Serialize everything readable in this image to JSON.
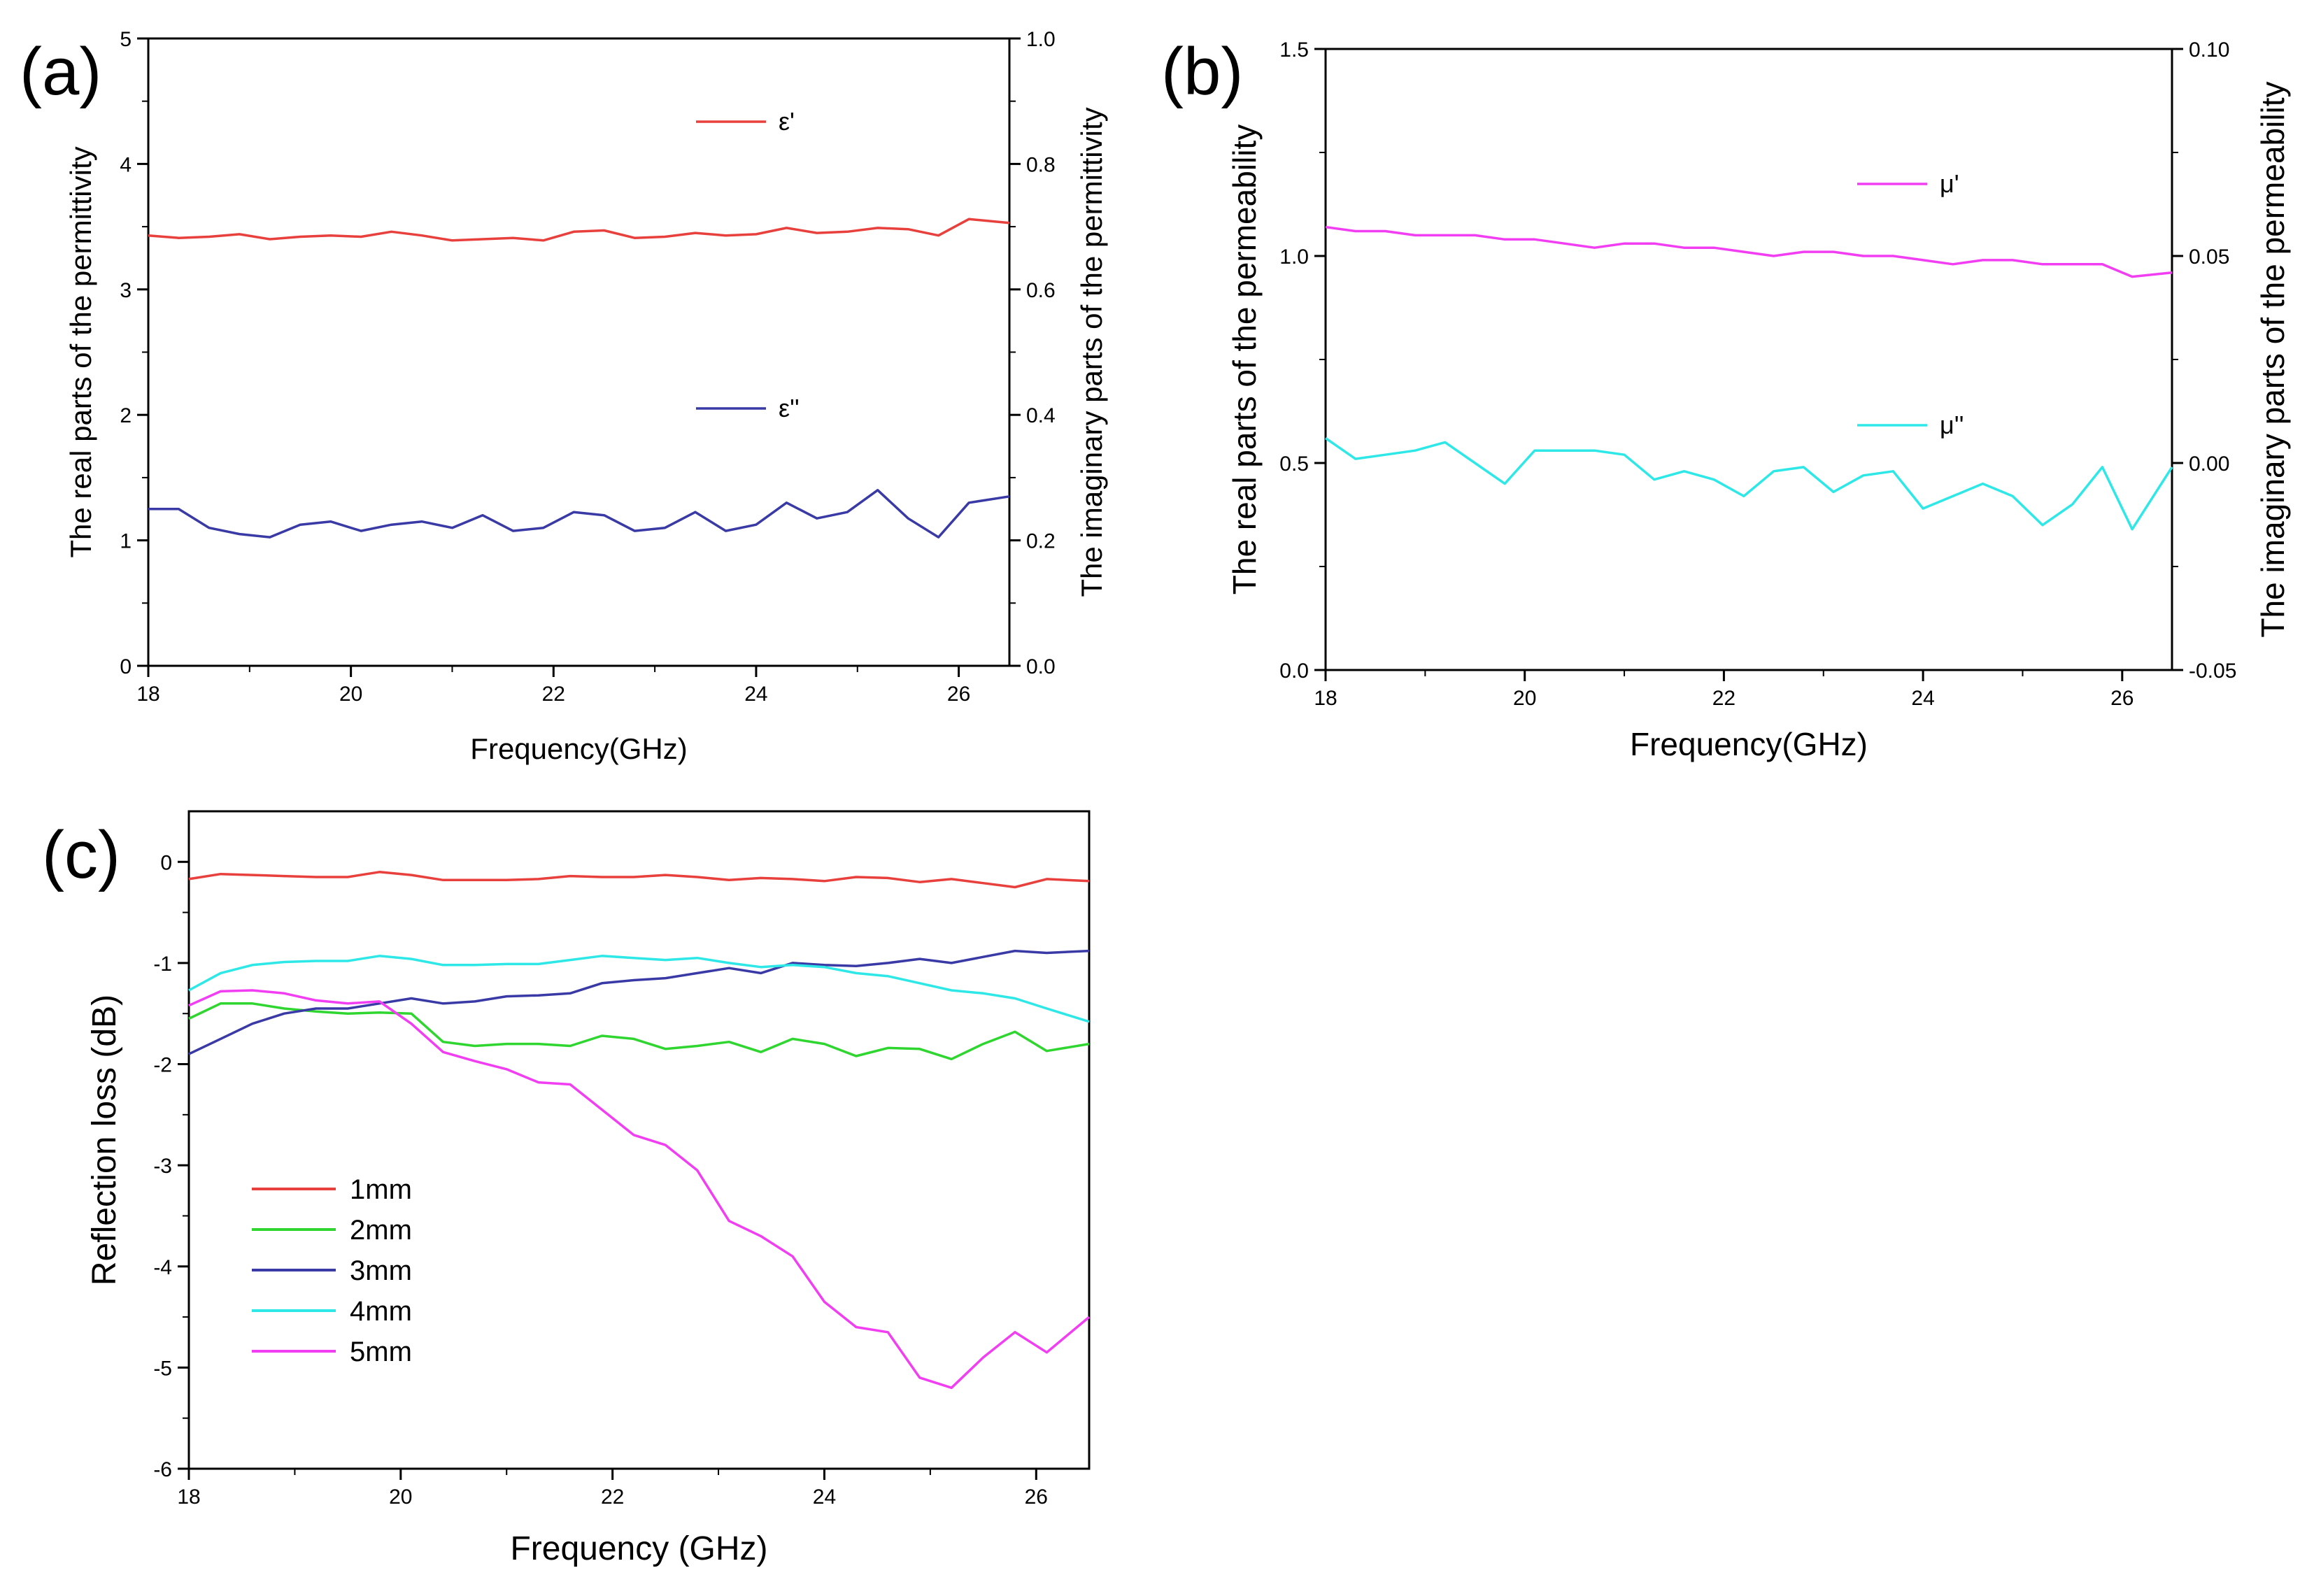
{
  "colors": {
    "red": "#e8403c",
    "green": "#2fd62f",
    "blue": "#3a3aa6",
    "cyan": "#2ee8e8",
    "magenta": "#f23ef2"
  },
  "chart_data": [
    {
      "panel": "(a)",
      "type": "line",
      "title": "",
      "xlabel": "Frequency(GHz)",
      "ylabel": "The real  parts of the permittivity",
      "y2label": "The imaginary parts of the permittivity",
      "xlim": [
        18,
        26.5
      ],
      "ylim": [
        0,
        5
      ],
      "y2lim": [
        0,
        1.0
      ],
      "xticks": [
        "18",
        "20",
        "22",
        "24",
        "26"
      ],
      "xtick_values": [
        18,
        20,
        22,
        24,
        26
      ],
      "yticks": [
        "0",
        "1",
        "2",
        "3",
        "4",
        "5"
      ],
      "ytick_values": [
        0,
        1,
        2,
        3,
        4,
        5
      ],
      "y2ticks": [
        "0.0",
        "0.2",
        "0.4",
        "0.6",
        "0.8",
        "1.0"
      ],
      "y2tick_values": [
        0,
        0.2,
        0.4,
        0.6,
        0.8,
        1.0
      ],
      "legend_position": "inside-right",
      "series": [
        {
          "name": "ε'",
          "axis": "left",
          "color": "#e8403c",
          "x": [
            18,
            18.3,
            18.6,
            18.9,
            19.2,
            19.5,
            19.8,
            20.1,
            20.4,
            20.7,
            21.0,
            21.3,
            21.6,
            21.9,
            22.2,
            22.5,
            22.8,
            23.1,
            23.4,
            23.7,
            24.0,
            24.3,
            24.6,
            24.9,
            25.2,
            25.5,
            25.8,
            26.1,
            26.5
          ],
          "y": [
            3.43,
            3.41,
            3.42,
            3.44,
            3.4,
            3.42,
            3.43,
            3.42,
            3.46,
            3.43,
            3.39,
            3.4,
            3.41,
            3.39,
            3.46,
            3.47,
            3.41,
            3.42,
            3.45,
            3.43,
            3.44,
            3.49,
            3.45,
            3.46,
            3.49,
            3.48,
            3.43,
            3.56,
            3.53
          ]
        },
        {
          "name": "ε''",
          "axis": "right",
          "color": "#3a3aa6",
          "x": [
            18,
            18.3,
            18.6,
            18.9,
            19.2,
            19.5,
            19.8,
            20.1,
            20.4,
            20.7,
            21.0,
            21.3,
            21.6,
            21.9,
            22.2,
            22.5,
            22.8,
            23.1,
            23.4,
            23.7,
            24.0,
            24.3,
            24.6,
            24.9,
            25.2,
            25.5,
            25.8,
            26.1,
            26.5
          ],
          "y": [
            0.25,
            0.25,
            0.22,
            0.21,
            0.205,
            0.225,
            0.23,
            0.215,
            0.225,
            0.23,
            0.22,
            0.24,
            0.215,
            0.22,
            0.245,
            0.24,
            0.215,
            0.22,
            0.245,
            0.215,
            0.225,
            0.26,
            0.235,
            0.245,
            0.28,
            0.235,
            0.205,
            0.26,
            0.27
          ]
        }
      ]
    },
    {
      "panel": "(b)",
      "type": "line",
      "title": "",
      "xlabel": "Frequency(GHz)",
      "ylabel": "The real parts of the permeability",
      "y2label": "The imaginary parts of the permeability",
      "xlim": [
        18,
        26.5
      ],
      "ylim": [
        0,
        1.5
      ],
      "y2lim": [
        -0.05,
        0.1
      ],
      "xticks": [
        "18",
        "20",
        "22",
        "24",
        "26"
      ],
      "xtick_values": [
        18,
        20,
        22,
        24,
        26
      ],
      "yticks": [
        "0.0",
        "0.5",
        "1.0",
        "1.5"
      ],
      "ytick_values": [
        0,
        0.5,
        1.0,
        1.5
      ],
      "y2ticks": [
        "-0.05",
        "0.00",
        "0.05",
        "0.10"
      ],
      "y2tick_values": [
        -0.05,
        0,
        0.05,
        0.1
      ],
      "legend_position": "inside-right",
      "series": [
        {
          "name": "μ'",
          "axis": "left",
          "color": "#f23ef2",
          "x": [
            18,
            18.3,
            18.6,
            18.9,
            19.2,
            19.5,
            19.8,
            20.1,
            20.4,
            20.7,
            21.0,
            21.3,
            21.6,
            21.9,
            22.2,
            22.5,
            22.8,
            23.1,
            23.4,
            23.7,
            24.0,
            24.3,
            24.6,
            24.9,
            25.2,
            25.5,
            25.8,
            26.1,
            26.5
          ],
          "y": [
            1.07,
            1.06,
            1.06,
            1.05,
            1.05,
            1.05,
            1.04,
            1.04,
            1.03,
            1.02,
            1.03,
            1.03,
            1.02,
            1.02,
            1.01,
            1.0,
            1.01,
            1.01,
            1.0,
            1.0,
            0.99,
            0.98,
            0.99,
            0.99,
            0.98,
            0.98,
            0.98,
            0.95,
            0.96
          ]
        },
        {
          "name": "μ''",
          "axis": "right",
          "color": "#2ee8e8",
          "x": [
            18,
            18.3,
            18.6,
            18.9,
            19.2,
            19.5,
            19.8,
            20.1,
            20.4,
            20.7,
            21.0,
            21.3,
            21.6,
            21.9,
            22.2,
            22.5,
            22.8,
            23.1,
            23.4,
            23.7,
            24.0,
            24.3,
            24.6,
            24.9,
            25.2,
            25.5,
            25.8,
            26.1,
            26.5
          ],
          "y": [
            0.006,
            0.001,
            0.002,
            0.003,
            0.005,
            0.0,
            -0.005,
            0.003,
            0.003,
            0.003,
            0.002,
            -0.004,
            -0.002,
            -0.004,
            -0.008,
            -0.002,
            -0.001,
            -0.007,
            -0.003,
            -0.002,
            -0.011,
            -0.008,
            -0.005,
            -0.008,
            -0.015,
            -0.01,
            -0.001,
            -0.016,
            -0.001
          ]
        }
      ]
    },
    {
      "panel": "(c)",
      "type": "line",
      "title": "",
      "xlabel": "Frequency (GHz)",
      "ylabel": "Reflection loss (dB)",
      "xlim": [
        18,
        26.5
      ],
      "ylim": [
        -6,
        0.5
      ],
      "xticks": [
        "18",
        "20",
        "22",
        "24",
        "26"
      ],
      "xtick_values": [
        18,
        20,
        22,
        24,
        26
      ],
      "yticks": [
        "-6",
        "-5",
        "-4",
        "-3",
        "-2",
        "-1",
        "0"
      ],
      "ytick_values": [
        -6,
        -5,
        -4,
        -3,
        -2,
        -1,
        0
      ],
      "legend_position": "lower-left",
      "series": [
        {
          "name": "1mm",
          "color": "#e8403c",
          "x": [
            18,
            18.3,
            18.6,
            18.9,
            19.2,
            19.5,
            19.8,
            20.1,
            20.4,
            20.7,
            21.0,
            21.3,
            21.6,
            21.9,
            22.2,
            22.5,
            22.8,
            23.1,
            23.4,
            23.7,
            24.0,
            24.3,
            24.6,
            24.9,
            25.2,
            25.5,
            25.8,
            26.1,
            26.5
          ],
          "y": [
            -0.17,
            -0.12,
            -0.13,
            -0.14,
            -0.15,
            -0.15,
            -0.1,
            -0.13,
            -0.18,
            -0.18,
            -0.18,
            -0.17,
            -0.14,
            -0.15,
            -0.15,
            -0.13,
            -0.15,
            -0.18,
            -0.16,
            -0.17,
            -0.19,
            -0.15,
            -0.16,
            -0.2,
            -0.17,
            -0.21,
            -0.25,
            -0.17,
            -0.19
          ]
        },
        {
          "name": "2mm",
          "color": "#2fd62f",
          "x": [
            18,
            18.3,
            18.6,
            18.9,
            19.2,
            19.5,
            19.8,
            20.1,
            20.4,
            20.7,
            21.0,
            21.3,
            21.6,
            21.9,
            22.2,
            22.5,
            22.8,
            23.1,
            23.4,
            23.7,
            24.0,
            24.3,
            24.6,
            24.9,
            25.2,
            25.5,
            25.8,
            26.1,
            26.5
          ],
          "y": [
            -1.55,
            -1.4,
            -1.4,
            -1.45,
            -1.48,
            -1.5,
            -1.49,
            -1.5,
            -1.78,
            -1.82,
            -1.8,
            -1.8,
            -1.82,
            -1.72,
            -1.75,
            -1.85,
            -1.82,
            -1.78,
            -1.88,
            -1.75,
            -1.8,
            -1.92,
            -1.84,
            -1.85,
            -1.95,
            -1.8,
            -1.68,
            -1.87,
            -1.8
          ]
        },
        {
          "name": "3mm",
          "color": "#3a3aa6",
          "x": [
            18,
            18.3,
            18.6,
            18.9,
            19.2,
            19.5,
            19.8,
            20.1,
            20.4,
            20.7,
            21.0,
            21.3,
            21.6,
            21.9,
            22.2,
            22.5,
            22.8,
            23.1,
            23.4,
            23.7,
            24.0,
            24.3,
            24.6,
            24.9,
            25.2,
            25.5,
            25.8,
            26.1,
            26.5
          ],
          "y": [
            -1.9,
            -1.75,
            -1.6,
            -1.5,
            -1.45,
            -1.45,
            -1.4,
            -1.35,
            -1.4,
            -1.38,
            -1.33,
            -1.32,
            -1.3,
            -1.2,
            -1.17,
            -1.15,
            -1.1,
            -1.05,
            -1.1,
            -1.0,
            -1.02,
            -1.03,
            -1.0,
            -0.96,
            -1.0,
            -0.94,
            -0.88,
            -0.9,
            -0.88
          ]
        },
        {
          "name": "4mm",
          "color": "#2ee8e8",
          "x": [
            18,
            18.3,
            18.6,
            18.9,
            19.2,
            19.5,
            19.8,
            20.1,
            20.4,
            20.7,
            21.0,
            21.3,
            21.6,
            21.9,
            22.2,
            22.5,
            22.8,
            23.1,
            23.4,
            23.7,
            24.0,
            24.3,
            24.6,
            24.9,
            25.2,
            25.5,
            25.8,
            26.1,
            26.5
          ],
          "y": [
            -1.27,
            -1.1,
            -1.02,
            -0.99,
            -0.98,
            -0.98,
            -0.93,
            -0.96,
            -1.02,
            -1.02,
            -1.01,
            -1.01,
            -0.97,
            -0.93,
            -0.95,
            -0.97,
            -0.95,
            -1.0,
            -1.04,
            -1.02,
            -1.04,
            -1.1,
            -1.13,
            -1.2,
            -1.27,
            -1.3,
            -1.35,
            -1.45,
            -1.58
          ]
        },
        {
          "name": "5mm",
          "color": "#f23ef2",
          "x": [
            18,
            18.3,
            18.6,
            18.9,
            19.2,
            19.5,
            19.8,
            20.1,
            20.4,
            20.7,
            21.0,
            21.3,
            21.6,
            21.9,
            22.2,
            22.5,
            22.8,
            23.1,
            23.4,
            23.7,
            24.0,
            24.3,
            24.6,
            24.9,
            25.2,
            25.5,
            25.8,
            26.1,
            26.5
          ],
          "y": [
            -1.42,
            -1.28,
            -1.27,
            -1.3,
            -1.37,
            -1.4,
            -1.38,
            -1.6,
            -1.88,
            -1.97,
            -2.05,
            -2.18,
            -2.2,
            -2.45,
            -2.7,
            -2.8,
            -3.05,
            -3.55,
            -3.7,
            -3.9,
            -4.35,
            -4.6,
            -4.65,
            -5.1,
            -5.2,
            -4.9,
            -4.65,
            -4.85,
            -4.5
          ]
        }
      ]
    }
  ]
}
